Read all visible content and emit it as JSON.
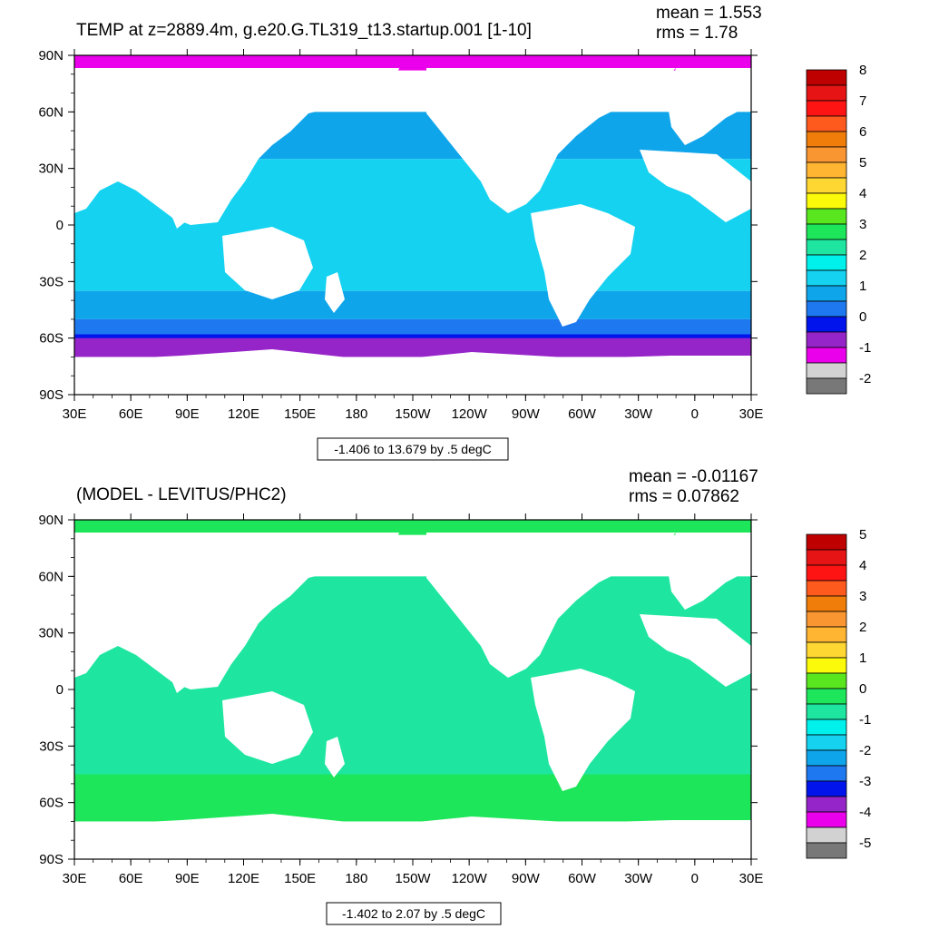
{
  "palette": [
    "#787878",
    "#d2d2d2",
    "#eb00eb",
    "#9625c9",
    "#0014eb",
    "#1e78f0",
    "#0fa5eb",
    "#14d2f0",
    "#00f0eb",
    "#1ee6a0",
    "#1ee65a",
    "#5ae61e",
    "#fafa0a",
    "#ffd732",
    "#ffb432",
    "#fa9632",
    "#f07d0a",
    "#ff5a1e",
    "#ff1414",
    "#e61414",
    "#be0000"
  ],
  "land_color": "#ffffff",
  "chart_data": [
    {
      "type": "map",
      "title": "TEMP at z=2889.4m, g.e20.G.TL319_t13.startup.001 [1-10]",
      "stats": {
        "mean": "mean = 1.553",
        "rms": "rms = 1.78"
      },
      "range_label": "-1.406 to 13.679 by .5 degC",
      "lat_ticks": [
        "90N",
        "60N",
        "30N",
        "0",
        "30S",
        "60S",
        "90S"
      ],
      "lon_ticks": [
        "30E",
        "60E",
        "90E",
        "120E",
        "150E",
        "180",
        "150W",
        "120W",
        "90W",
        "60W",
        "30W",
        "0",
        "30E"
      ],
      "colorbar": {
        "labels": [
          "8",
          "7",
          "6",
          "5",
          "4",
          "3",
          "2",
          "1",
          "0",
          "-1",
          "-2"
        ],
        "colors": [
          "#be0000",
          "#e61414",
          "#ff1414",
          "#ff5a1e",
          "#f07d0a",
          "#fa9632",
          "#ffb432",
          "#ffd732",
          "#fafa0a",
          "#5ae61e",
          "#1ee65a",
          "#1ee6a0",
          "#00f0eb",
          "#14d2f0",
          "#0fa5eb",
          "#1e78f0",
          "#0014eb",
          "#9625c9",
          "#eb00eb",
          "#d2d2d2",
          "#787878"
        ]
      },
      "bands": [
        {
          "lat_top": 90,
          "lat_bot": 82,
          "color": "#eb00eb"
        },
        {
          "lat_top": 60,
          "lat_bot": 35,
          "color": "#0fa5eb"
        },
        {
          "lat_top": 35,
          "lat_bot": -35,
          "color": "#14d2f0"
        },
        {
          "lat_top": -35,
          "lat_bot": -50,
          "color": "#0fa5eb"
        },
        {
          "lat_top": -50,
          "lat_bot": -58,
          "color": "#1e78f0"
        },
        {
          "lat_top": -58,
          "lat_bot": -68,
          "color": "#0014eb"
        },
        {
          "lat_top": -60,
          "lat_bot": -70,
          "color": "#9625c9"
        }
      ]
    },
    {
      "type": "map",
      "title": "(MODEL - LEVITUS/PHC2)",
      "stats": {
        "mean": "mean = -0.01167",
        "rms": "rms = 0.07862"
      },
      "range_label": "-1.402 to 2.07 by .5 degC",
      "lat_ticks": [
        "90N",
        "60N",
        "30N",
        "0",
        "30S",
        "60S",
        "90S"
      ],
      "lon_ticks": [
        "30E",
        "60E",
        "90E",
        "120E",
        "150E",
        "180",
        "150W",
        "120W",
        "90W",
        "60W",
        "30W",
        "0",
        "30E"
      ],
      "colorbar": {
        "labels": [
          "5",
          "4",
          "3",
          "2",
          "1",
          "0",
          "-1",
          "-2",
          "-3",
          "-4",
          "-5"
        ],
        "colors": [
          "#be0000",
          "#e61414",
          "#ff1414",
          "#ff5a1e",
          "#f07d0a",
          "#fa9632",
          "#ffb432",
          "#ffd732",
          "#fafa0a",
          "#5ae61e",
          "#1ee65a",
          "#1ee6a0",
          "#00f0eb",
          "#14d2f0",
          "#0fa5eb",
          "#1e78f0",
          "#0014eb",
          "#9625c9",
          "#eb00eb",
          "#d2d2d2",
          "#787878"
        ]
      },
      "bands": [
        {
          "lat_top": 90,
          "lat_bot": 82,
          "color": "#1ee65a"
        },
        {
          "lat_top": 60,
          "lat_bot": -45,
          "color": "#1ee6a0"
        },
        {
          "lat_top": -45,
          "lat_bot": -70,
          "color": "#1ee65a"
        }
      ]
    }
  ]
}
